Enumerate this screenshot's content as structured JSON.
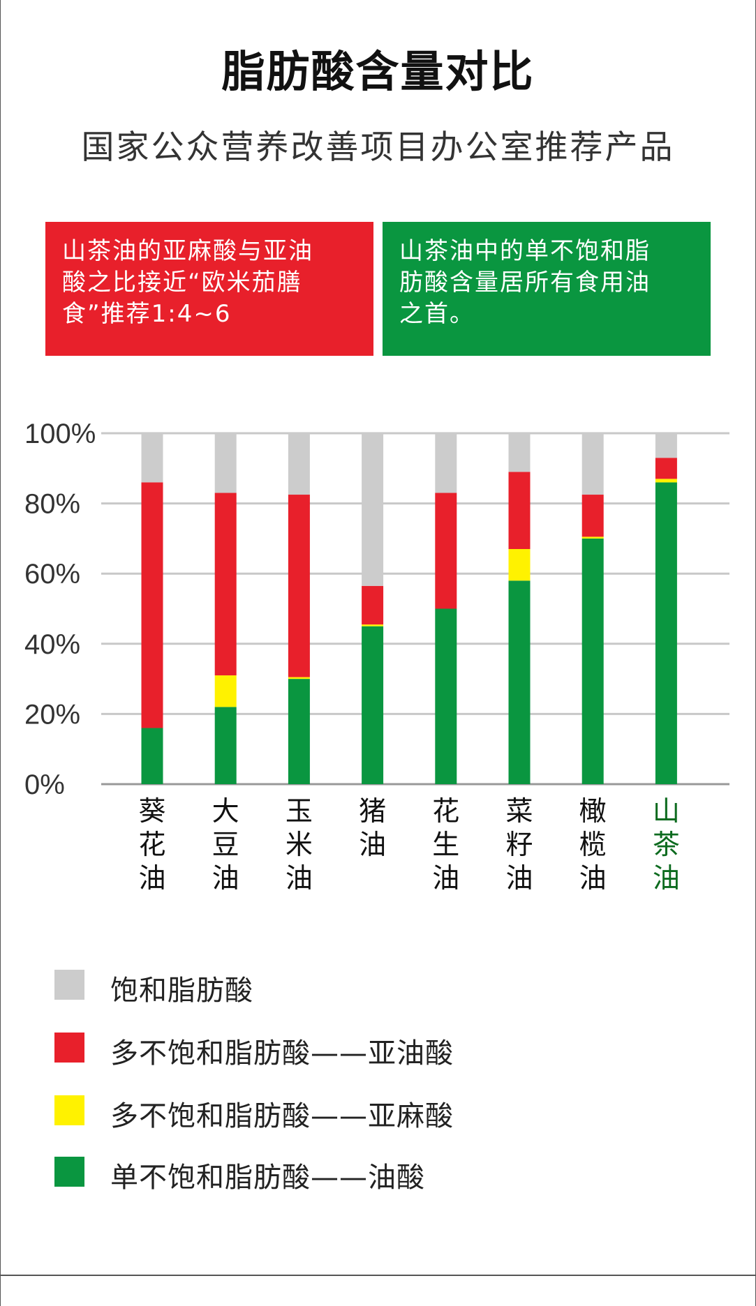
{
  "title": "脂肪酸含量对比",
  "subtitle": "国家公众营养改善项目办公室推荐产品",
  "info_boxes": [
    {
      "lines": [
        "山茶油的亚麻酸与亚油",
        "酸之比接近“欧米茄膳",
        "食”推荐1:4~6"
      ],
      "color": "#e8202b"
    },
    {
      "lines": [
        "山茶油中的单不饱和脂",
        "肪酸含量居所有食用油",
        "之首。"
      ],
      "color": "#0a9640"
    }
  ],
  "chart_data": {
    "type": "bar",
    "stacked": true,
    "categories": [
      "葵花油",
      "大豆油",
      "玉米油",
      "猪油",
      "花生油",
      "菜籽油",
      "橄榄油",
      "山茶油"
    ],
    "highlight_category": "山茶油",
    "y_ticks": [
      "0%",
      "20%",
      "40%",
      "60%",
      "80%",
      "100%"
    ],
    "ylim": [
      0,
      100
    ],
    "grid": true,
    "series": [
      {
        "name": "单不饱和脂肪酸——油酸",
        "color": "#0a9640",
        "values": [
          16,
          22,
          30,
          45,
          50,
          58,
          70,
          86
        ]
      },
      {
        "name": "多不饱和脂肪酸——亚麻酸",
        "color": "#fff200",
        "values": [
          0,
          9,
          0.5,
          0.5,
          0,
          9,
          0.5,
          1
        ]
      },
      {
        "name": "多不饱和脂肪酸——亚油酸",
        "color": "#e8202b",
        "values": [
          70,
          52,
          52,
          11,
          33,
          22,
          12,
          6
        ]
      },
      {
        "name": "饱和脂肪酸",
        "color": "#cccccc",
        "values": [
          14,
          17,
          17.5,
          43.5,
          17,
          11,
          17.5,
          7
        ]
      }
    ]
  },
  "legend": [
    {
      "label": "饱和脂肪酸",
      "color": "#cccccc"
    },
    {
      "label": "多不饱和脂肪酸——亚油酸",
      "color": "#e8202b"
    },
    {
      "label": "多不饱和脂肪酸——亚麻酸",
      "color": "#fff200"
    },
    {
      "label": "单不饱和脂肪酸——油酸",
      "color": "#0a9640"
    }
  ]
}
